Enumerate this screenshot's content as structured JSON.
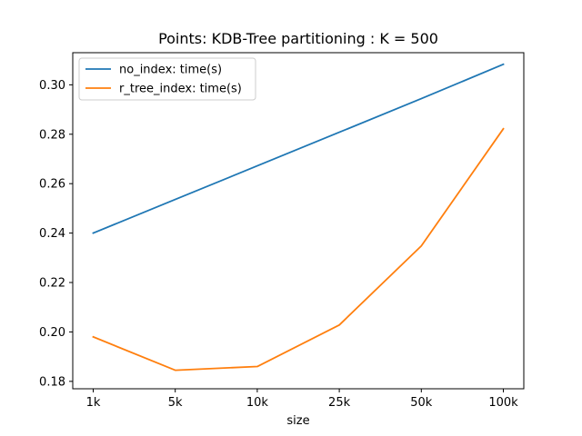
{
  "chart_data": {
    "type": "line",
    "title": "Points: KDB-Tree partitioning : K = 500",
    "xlabel": "size",
    "ylabel": "",
    "categories": [
      "1k",
      "5k",
      "10k",
      "25k",
      "50k",
      "100k"
    ],
    "ylim": [
      0.177,
      0.313
    ],
    "yticks": [
      0.18,
      0.2,
      0.22,
      0.24,
      0.26,
      0.28,
      0.3
    ],
    "ytick_labels": [
      "0.18",
      "0.20",
      "0.22",
      "0.24",
      "0.26",
      "0.28",
      "0.30"
    ],
    "grid": false,
    "legend_position": "upper-left",
    "series": [
      {
        "name": "no_index: time(s)",
        "color": "#1f77b4",
        "values": [
          0.24,
          0.2536,
          0.2672,
          0.2808,
          0.2944,
          0.3083
        ]
      },
      {
        "name": "r_tree_index: time(s)",
        "color": "#ff7f0e",
        "values": [
          0.198,
          0.1845,
          0.186,
          0.2028,
          0.2348,
          0.2822
        ]
      }
    ]
  }
}
